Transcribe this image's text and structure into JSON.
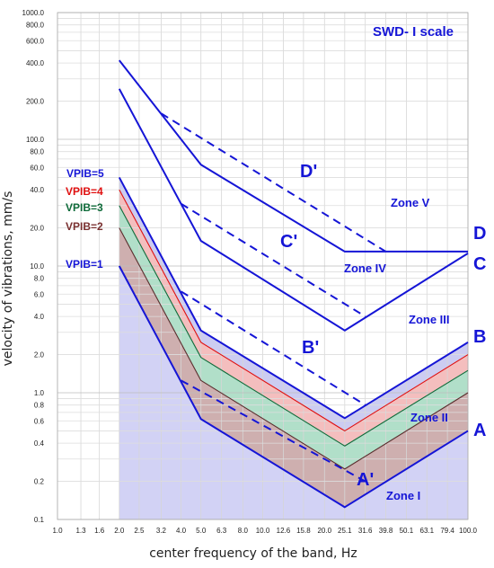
{
  "chart_data": {
    "type": "line",
    "title": "SWD- I scale",
    "xlabel": "center frequency of the band, Hz",
    "ylabel": "velocity of vibrations, mm/s",
    "x_scale": "log",
    "y_scale": "log",
    "xlim": [
      1.0,
      100.0
    ],
    "ylim": [
      0.1,
      1000.0
    ],
    "x_ticks": [
      "1.0",
      "1.3",
      "1.6",
      "2.0",
      "2.5",
      "3.2",
      "4.0",
      "5.0",
      "6.3",
      "8.0",
      "10.0",
      "12.6",
      "15.8",
      "20.0",
      "25.1",
      "31.6",
      "39.8",
      "50.1",
      "63.1",
      "79.4",
      "100.0"
    ],
    "y_ticks": [
      {
        "value": 1000,
        "label": "1000.0"
      },
      {
        "value": 800,
        "label": "800.0"
      },
      {
        "value": 600,
        "label": "600.0"
      },
      {
        "value": 400,
        "label": "400.0"
      },
      {
        "value": 200,
        "label": "200.0"
      },
      {
        "value": 100,
        "label": "100.0"
      },
      {
        "value": 80,
        "label": "80.0"
      },
      {
        "value": 60,
        "label": "60.0"
      },
      {
        "value": 40,
        "label": "40.0"
      },
      {
        "value": 20,
        "label": "20.0"
      },
      {
        "value": 10,
        "label": "10.0"
      },
      {
        "value": 8,
        "label": "8.0"
      },
      {
        "value": 6,
        "label": "6.0"
      },
      {
        "value": 4,
        "label": "4.0"
      },
      {
        "value": 2,
        "label": "2.0"
      },
      {
        "value": 1,
        "label": "1.0"
      },
      {
        "value": 0.8,
        "label": "0.8"
      },
      {
        "value": 0.6,
        "label": "0.6"
      },
      {
        "value": 0.4,
        "label": "0.4"
      },
      {
        "value": 0.2,
        "label": "0.2"
      },
      {
        "value": 0.1,
        "label": "0.1"
      }
    ],
    "grid": true,
    "series": [
      {
        "name": "A",
        "style": "solid",
        "color": "#1515d6",
        "x": [
          2.0,
          5.0,
          25.1,
          100.0
        ],
        "y": [
          10.0,
          0.62,
          0.125,
          0.5
        ]
      },
      {
        "name": "B",
        "style": "solid",
        "color": "#1515d6",
        "x": [
          2.0,
          5.0,
          25.1,
          100.0
        ],
        "y": [
          50.0,
          3.1,
          0.63,
          2.5
        ]
      },
      {
        "name": "C",
        "style": "solid",
        "color": "#1515d6",
        "x": [
          2.0,
          5.0,
          25.1,
          100.0
        ],
        "y": [
          250.0,
          15.8,
          3.1,
          12.6
        ]
      },
      {
        "name": "D",
        "style": "solid",
        "color": "#1515d6",
        "x": [
          2.0,
          5.0,
          25.1,
          100.0
        ],
        "y": [
          420.0,
          63.0,
          13.0,
          13.0
        ]
      },
      {
        "name": "A'",
        "style": "dashed",
        "color": "#1515d6",
        "x": [
          4.0,
          31.6
        ],
        "y": [
          1.25,
          0.2
        ]
      },
      {
        "name": "B'",
        "style": "dashed",
        "color": "#1515d6",
        "x": [
          4.0,
          31.6
        ],
        "y": [
          6.3,
          0.8
        ]
      },
      {
        "name": "C'",
        "style": "dashed",
        "color": "#1515d6",
        "x": [
          4.0,
          31.6
        ],
        "y": [
          31.0,
          4.0
        ]
      },
      {
        "name": "D'",
        "style": "dashed",
        "color": "#1515d6",
        "x": [
          3.2,
          39.8
        ],
        "y": [
          160.0,
          13.0
        ]
      },
      {
        "name": "VPIB=2",
        "style": "solid",
        "color": "#5a2e2e",
        "x": [
          2.0,
          5.0,
          25.1,
          100.0
        ],
        "y": [
          20.0,
          1.25,
          0.25,
          1.0
        ]
      },
      {
        "name": "VPIB=3",
        "style": "solid",
        "color": "#0f6b3a",
        "x": [
          2.0,
          5.0,
          25.1,
          100.0
        ],
        "y": [
          30.0,
          1.9,
          0.38,
          1.5
        ]
      },
      {
        "name": "VPIB=4",
        "style": "solid",
        "color": "#e01010",
        "x": [
          2.0,
          5.0,
          25.1,
          100.0
        ],
        "y": [
          40.0,
          2.5,
          0.5,
          2.0
        ]
      }
    ],
    "bands": [
      {
        "lower": "A",
        "upper": "VPIB=2",
        "color": "#c9a6a6"
      },
      {
        "lower": "VPIB=2",
        "upper": "VPIB=3",
        "color": "#a9dcc3"
      },
      {
        "lower": "VPIB=3",
        "upper": "VPIB=4",
        "color": "#f3b7b7"
      },
      {
        "lower": "VPIB=4",
        "upper": "B",
        "color": "#c6c6ef"
      }
    ],
    "base_fill": {
      "series": "A",
      "color": "#d2d2f5"
    },
    "annotations": {
      "zones": [
        "Zone V",
        "Zone IV",
        "Zone III",
        "Zone II",
        "Zone I"
      ],
      "curve_labels": [
        "D",
        "C",
        "B",
        "A"
      ],
      "primed_labels": [
        "D'",
        "C'",
        "B'",
        "A'"
      ],
      "vpib_labels": [
        {
          "text": "VPIB=5",
          "color": "#1515d6"
        },
        {
          "text": "VPIB=4",
          "color": "#e01010"
        },
        {
          "text": "VPIB=3",
          "color": "#0f6b3a"
        },
        {
          "text": "VPIB=2",
          "color": "#7a3030"
        },
        {
          "text": "VPIB=1",
          "color": "#1515d6"
        }
      ]
    }
  }
}
